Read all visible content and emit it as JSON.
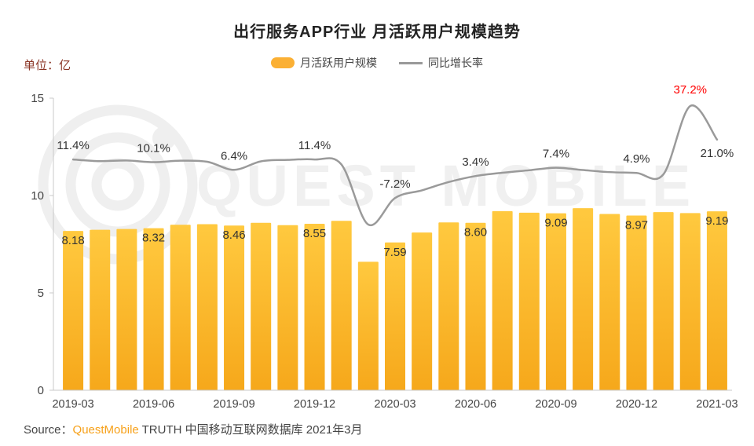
{
  "title": "出行服务APP行业 月活跃用户规模趋势",
  "unit_label": "单位：亿",
  "legend": {
    "bar_label": "月活跃用户规模",
    "line_label": "同比增长率"
  },
  "source": {
    "prefix": "Source：",
    "brand": "QuestMobile",
    "rest": " TRUTH 中国移动互联网数据库 2021年3月"
  },
  "watermark_text": "QUEST MOBILE",
  "colors": {
    "bar_top": "#FFC93F",
    "bar_bottom": "#F6A81B",
    "bar_swatch": "#FBB034",
    "line": "#9A9A9A",
    "highlight_red": "#FF0000",
    "label_text": "#333333",
    "axis_text": "#444444",
    "axis_line": "#C9C9C9"
  },
  "chart_data": {
    "type": "bar+line",
    "title": "出行服务APP行业 月活跃用户规模趋势",
    "ylabel": "单位：亿",
    "ylim": [
      0,
      15
    ],
    "yticks": [
      0,
      5,
      10,
      15
    ],
    "y2lim": [
      -100,
      41
    ],
    "grid": false,
    "legend_position": "top-center",
    "x": [
      "2019-03",
      "2019-04",
      "2019-05",
      "2019-06",
      "2019-07",
      "2019-08",
      "2019-09",
      "2019-10",
      "2019-11",
      "2019-12",
      "2020-01",
      "2020-02",
      "2020-03",
      "2020-04",
      "2020-05",
      "2020-06",
      "2020-07",
      "2020-08",
      "2020-09",
      "2020-10",
      "2020-11",
      "2020-12",
      "2021-01",
      "2021-02",
      "2021-03"
    ],
    "x_tick_indices": [
      0,
      3,
      6,
      9,
      12,
      15,
      18,
      21,
      24
    ],
    "series": [
      {
        "name": "月活跃用户规模",
        "type": "bar",
        "unit": "亿",
        "values": [
          8.18,
          8.24,
          8.28,
          8.32,
          8.5,
          8.53,
          8.46,
          8.6,
          8.48,
          8.55,
          8.7,
          6.6,
          7.59,
          8.1,
          8.62,
          8.6,
          9.2,
          9.12,
          9.09,
          9.35,
          9.05,
          8.97,
          9.15,
          9.1,
          9.19
        ]
      },
      {
        "name": "同比增长率",
        "type": "line",
        "unit": "%",
        "values": [
          11.4,
          10.6,
          10.9,
          10.1,
          10.8,
          10.3,
          6.4,
          10.5,
          11.2,
          11.4,
          9.0,
          -20.0,
          -7.2,
          -3.5,
          0.5,
          3.4,
          5.0,
          6.2,
          7.4,
          6.3,
          5.3,
          4.9,
          4.2,
          37.2,
          21.0
        ]
      }
    ],
    "bar_labels": [
      {
        "i": 0,
        "text": "8.18"
      },
      {
        "i": 3,
        "text": "8.32"
      },
      {
        "i": 6,
        "text": "8.46"
      },
      {
        "i": 9,
        "text": "8.55"
      },
      {
        "i": 12,
        "text": "7.59"
      },
      {
        "i": 15,
        "text": "8.60"
      },
      {
        "i": 18,
        "text": "9.09"
      },
      {
        "i": 21,
        "text": "8.97"
      },
      {
        "i": 24,
        "text": "9.19"
      }
    ],
    "line_labels": [
      {
        "i": 0,
        "text": "11.4%"
      },
      {
        "i": 3,
        "text": "10.1%"
      },
      {
        "i": 6,
        "text": "6.4%"
      },
      {
        "i": 9,
        "text": "11.4%"
      },
      {
        "i": 12,
        "text": "-7.2%"
      },
      {
        "i": 15,
        "text": "3.4%"
      },
      {
        "i": 18,
        "text": "7.4%"
      },
      {
        "i": 21,
        "text": "4.9%"
      },
      {
        "i": 23,
        "text": "37.2%",
        "color": "#FF0000",
        "dy": -16
      },
      {
        "i": 24,
        "text": "21.0%",
        "dy": 22
      }
    ]
  }
}
